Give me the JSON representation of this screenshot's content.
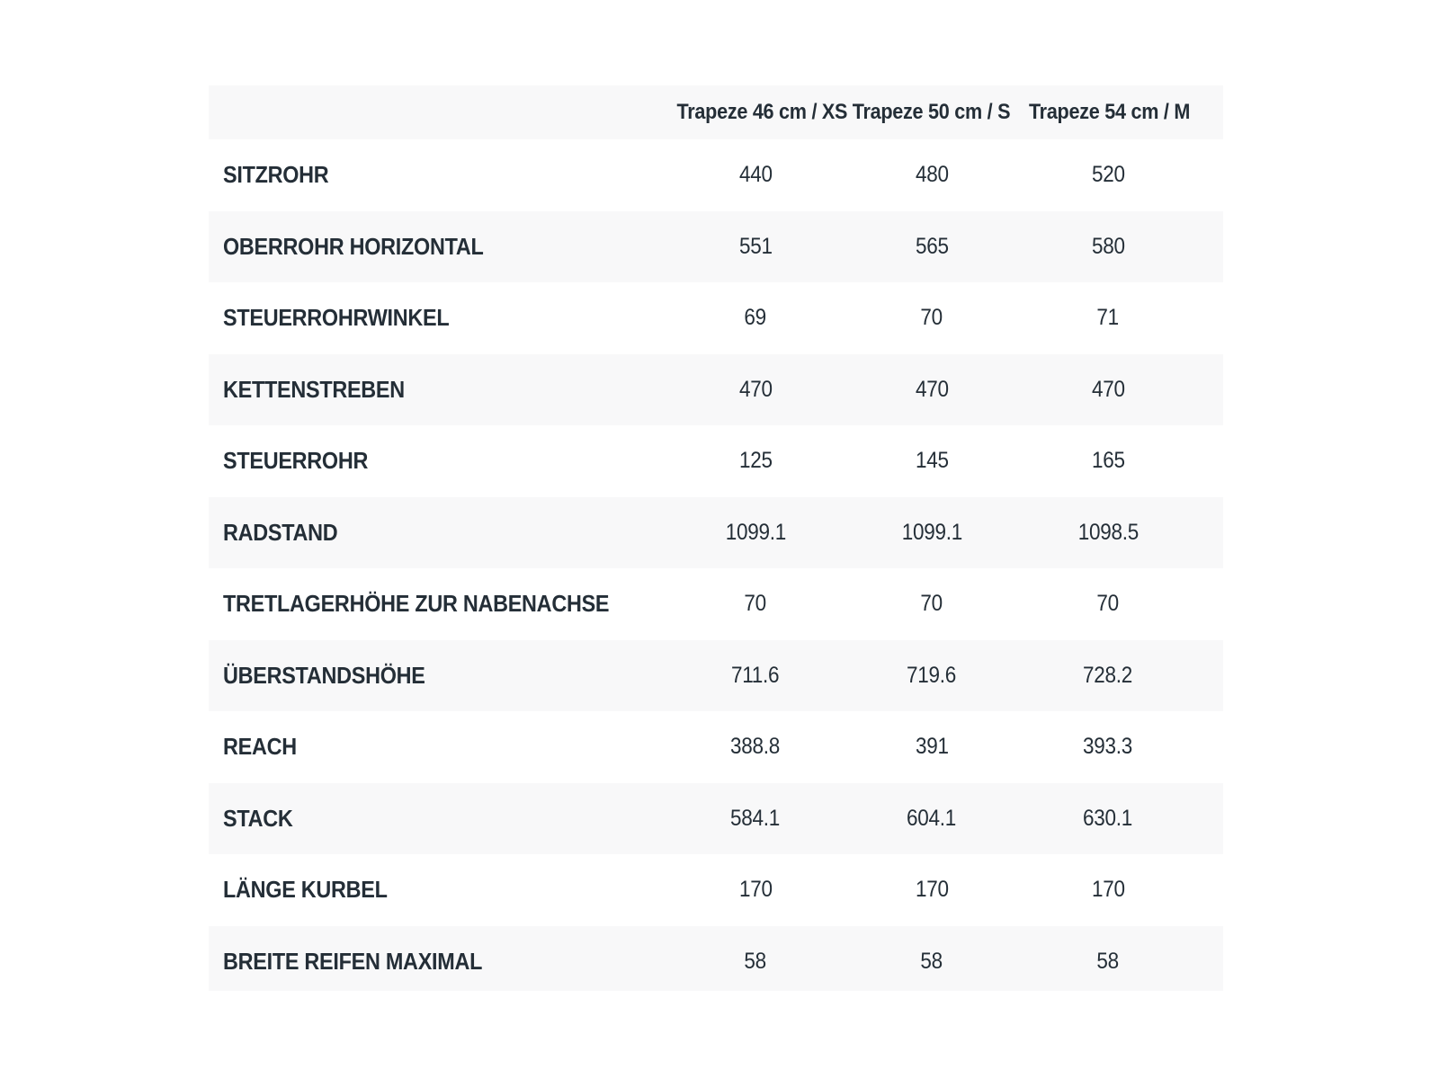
{
  "table": {
    "columns": [
      {
        "label": "Trapeze 46 cm / XS"
      },
      {
        "label": "Trapeze 50 cm / S"
      },
      {
        "label": "Trapeze 54 cm / M"
      }
    ],
    "rows": [
      {
        "label": "SITZROHR",
        "values": [
          "440",
          "480",
          "520"
        ]
      },
      {
        "label": "OBERROHR HORIZONTAL",
        "values": [
          "551",
          "565",
          "580"
        ]
      },
      {
        "label": "STEUERROHRWINKEL",
        "values": [
          "69",
          "70",
          "71"
        ]
      },
      {
        "label": "KETTENSTREBEN",
        "values": [
          "470",
          "470",
          "470"
        ]
      },
      {
        "label": "STEUERROHR",
        "values": [
          "125",
          "145",
          "165"
        ]
      },
      {
        "label": "RADSTAND",
        "values": [
          "1099.1",
          "1099.1",
          "1098.5"
        ]
      },
      {
        "label": "TRETLAGERHÖHE ZUR NABENACHSE",
        "values": [
          "70",
          "70",
          "70"
        ]
      },
      {
        "label": "ÜBERSTANDSHÖHE",
        "values": [
          "711.6",
          "719.6",
          "728.2"
        ]
      },
      {
        "label": "REACH",
        "values": [
          "388.8",
          "391",
          "393.3"
        ]
      },
      {
        "label": "STACK",
        "values": [
          "584.1",
          "604.1",
          "630.1"
        ]
      },
      {
        "label": "LÄNGE KURBEL",
        "values": [
          "170",
          "170",
          "170"
        ]
      },
      {
        "label": "BREITE REIFEN MAXIMAL",
        "values": [
          "58",
          "58",
          "58"
        ]
      }
    ],
    "colors": {
      "background": "#ffffff",
      "stripe": "#f8f8f9",
      "text": "#242e37"
    }
  }
}
